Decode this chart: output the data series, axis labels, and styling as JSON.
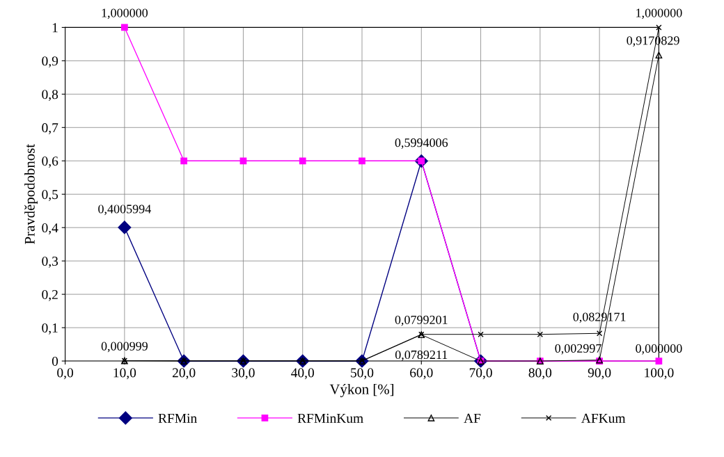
{
  "chart_data": {
    "type": "line",
    "xlabel": "Výkon [%]",
    "ylabel": "Pravděpodobnost",
    "x": [
      10,
      20,
      30,
      40,
      50,
      60,
      70,
      80,
      90,
      100
    ],
    "series": [
      {
        "name": "RFMin",
        "color": "#000080",
        "marker": "diamond",
        "values": [
          0.4005994,
          0,
          0,
          0,
          0,
          0.5994006,
          0,
          null,
          null,
          null
        ]
      },
      {
        "name": "RFMinKum",
        "color": "#ff00ff",
        "marker": "square",
        "values": [
          1,
          0.6,
          0.6,
          0.6,
          0.6,
          0.6,
          0,
          0,
          0,
          0
        ]
      },
      {
        "name": "AF",
        "color": "#000000",
        "marker": "triangle",
        "values": [
          0.000999,
          0,
          0,
          0,
          0,
          0.0789211,
          0,
          0,
          0.002997,
          0.9170829
        ]
      },
      {
        "name": "AFKum",
        "color": "#000000",
        "marker": "cross",
        "values": [
          0.000999,
          0.001,
          0.001,
          0.001,
          0.001,
          0.0799201,
          0.0799201,
          0.0799201,
          0.0829171,
          1
        ]
      }
    ],
    "xlim": [
      0,
      100
    ],
    "xticks": [
      {
        "value": 0,
        "label": "0,0"
      },
      {
        "value": 10,
        "label": "10,0"
      },
      {
        "value": 20,
        "label": "20,0"
      },
      {
        "value": 30,
        "label": "30,0"
      },
      {
        "value": 40,
        "label": "40,0"
      },
      {
        "value": 50,
        "label": "50,0"
      },
      {
        "value": 60,
        "label": "60,0"
      },
      {
        "value": 70,
        "label": "70,0"
      },
      {
        "value": 80,
        "label": "80,0"
      },
      {
        "value": 90,
        "label": "90,0"
      },
      {
        "value": 100,
        "label": "100,0"
      }
    ],
    "ylim": [
      0,
      1
    ],
    "yticks": [
      0,
      {
        "value": 0.1,
        "label": "0,1"
      },
      {
        "value": 0.2,
        "label": "0,2"
      },
      {
        "value": 0.3,
        "label": "0,3"
      },
      {
        "value": 0.4,
        "label": "0,4"
      },
      {
        "value": 0.5,
        "label": "0,5"
      },
      {
        "value": 0.6,
        "label": "0,6"
      },
      {
        "value": 0.7,
        "label": "0,7"
      },
      {
        "value": 0.8,
        "label": "0,8"
      },
      {
        "value": 0.9,
        "label": "0,9"
      },
      1
    ],
    "grid": true,
    "legend": "bottom",
    "annotations": [
      {
        "text": "1,000000",
        "x": 10,
        "y": 1
      },
      {
        "text": "0,4005994",
        "x": 10,
        "y": 0.4005994
      },
      {
        "text": "0,000999",
        "x": 10,
        "y": 0.000999
      },
      {
        "text": "0,5994006",
        "x": 60,
        "y": 0.5994006
      },
      {
        "text": "0,0799201",
        "x": 60,
        "y": 0.0799201
      },
      {
        "text": "0,0789211",
        "x": 60,
        "y": 0.0789211
      },
      {
        "text": "0,0829171",
        "x": 90,
        "y": 0.0829171
      },
      {
        "text": "0,002997",
        "x": 90,
        "y": 0.002997
      },
      {
        "text": "1,000000",
        "x": 100,
        "y": 1
      },
      {
        "text": "0,9170829",
        "x": 100,
        "y": 0.9170829
      },
      {
        "text": "0,000000",
        "x": 100,
        "y": 0
      }
    ]
  }
}
